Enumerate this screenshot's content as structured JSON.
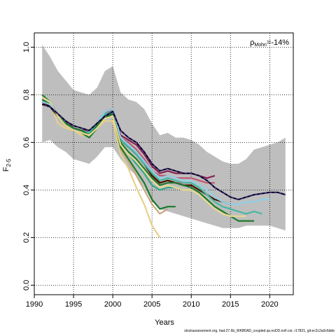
{
  "chart_data": {
    "type": "line",
    "title": "",
    "xlabel": "Years",
    "ylabel_main": "F",
    "ylabel_sub": "2-5",
    "xlim": [
      1990,
      2023
    ],
    "ylim": [
      -0.04,
      1.06
    ],
    "x_ticks": [
      1990,
      1995,
      2000,
      2005,
      2010,
      2015,
      2020
    ],
    "y_ticks": [
      0.0,
      0.2,
      0.4,
      0.6,
      0.8,
      1.0
    ],
    "y_tick_labels": [
      "0.0",
      "0.2",
      "0.4",
      "0.6",
      "0.8",
      "1.0"
    ],
    "grid": true,
    "annotation": {
      "text_main": "ρ",
      "text_sub": "Mohn",
      "text_value": "=-14%"
    },
    "confidence_band": {
      "color": "#bebebe",
      "x": [
        1991,
        1992,
        1993,
        1994,
        1995,
        1996,
        1997,
        1998,
        1999,
        2000,
        2001,
        2002,
        2003,
        2004,
        2005,
        2006,
        2007,
        2008,
        2009,
        2010,
        2011,
        2012,
        2013,
        2014,
        2015,
        2016,
        2017,
        2018,
        2019,
        2020,
        2021,
        2022
      ],
      "upper": [
        1.01,
        0.96,
        0.9,
        0.86,
        0.82,
        0.81,
        0.8,
        0.83,
        0.9,
        0.92,
        0.81,
        0.78,
        0.77,
        0.74,
        0.68,
        0.63,
        0.64,
        0.62,
        0.62,
        0.61,
        0.59,
        0.56,
        0.54,
        0.52,
        0.51,
        0.51,
        0.53,
        0.57,
        0.58,
        0.59,
        0.6,
        0.62
      ],
      "lower": [
        0.6,
        0.61,
        0.58,
        0.56,
        0.53,
        0.52,
        0.51,
        0.54,
        0.58,
        0.58,
        0.53,
        0.49,
        0.46,
        0.41,
        0.35,
        0.32,
        0.31,
        0.3,
        0.29,
        0.28,
        0.27,
        0.26,
        0.25,
        0.24,
        0.24,
        0.24,
        0.25,
        0.25,
        0.25,
        0.25,
        0.24,
        0.23
      ]
    },
    "series": [
      {
        "color": "#e8d08a",
        "x": [
          1991,
          1992,
          1993,
          1994,
          1995,
          1996,
          1997,
          1998,
          1999,
          2000,
          2001,
          2002,
          2003,
          2004,
          2005,
          2006
        ],
        "values": [
          0.79,
          0.77,
          0.68,
          0.66,
          0.65,
          0.63,
          0.63,
          0.66,
          0.69,
          0.69,
          0.55,
          0.49,
          0.41,
          0.34,
          0.25,
          0.2
        ]
      },
      {
        "color": "#c8a880",
        "x": [
          1991,
          1992,
          1993,
          1994,
          1995,
          1996,
          1997,
          1998,
          1999,
          2000,
          2001,
          2002,
          2003,
          2004,
          2005,
          2006,
          2007
        ],
        "values": [
          0.79,
          0.77,
          0.72,
          0.68,
          0.66,
          0.65,
          0.64,
          0.67,
          0.71,
          0.72,
          0.57,
          0.52,
          0.46,
          0.4,
          0.34,
          0.3,
          0.32
        ]
      },
      {
        "color": "#1b7a2c",
        "x": [
          1991,
          1992,
          1993,
          1994,
          1995,
          1996,
          1997,
          1998,
          1999,
          2000,
          2001,
          2002,
          2003,
          2004,
          2005,
          2006,
          2007,
          2008
        ],
        "values": [
          0.8,
          0.77,
          0.71,
          0.67,
          0.65,
          0.64,
          0.62,
          0.66,
          0.7,
          0.72,
          0.58,
          0.53,
          0.48,
          0.43,
          0.36,
          0.32,
          0.33,
          0.33
        ]
      },
      {
        "color": "#2fa88a",
        "x": [
          1991,
          1992,
          1993,
          1994,
          1995,
          1996,
          1997,
          1998,
          1999,
          2000,
          2001,
          2002,
          2003,
          2004,
          2005,
          2006,
          2007,
          2008,
          2009
        ],
        "values": [
          0.78,
          0.76,
          0.72,
          0.68,
          0.66,
          0.65,
          0.64,
          0.67,
          0.72,
          0.74,
          0.59,
          0.55,
          0.51,
          0.47,
          0.42,
          0.4,
          0.41,
          0.41,
          0.4
        ]
      },
      {
        "color": "#dd6088",
        "x": [
          1991,
          1992,
          1993,
          1994,
          1995,
          1996,
          1997,
          1998,
          1999,
          2000,
          2001,
          2002,
          2003,
          2004,
          2005,
          2006,
          2007,
          2008,
          2009,
          2010
        ],
        "values": [
          0.77,
          0.75,
          0.71,
          0.68,
          0.66,
          0.65,
          0.65,
          0.67,
          0.72,
          0.73,
          0.61,
          0.58,
          0.55,
          0.51,
          0.46,
          0.43,
          0.44,
          0.43,
          0.43,
          0.43
        ]
      },
      {
        "color": "#4a1f10",
        "x": [
          1991,
          1992,
          1993,
          1994,
          1995,
          1996,
          1997,
          1998,
          1999,
          2000,
          2001,
          2002,
          2003,
          2004,
          2005,
          2006,
          2007,
          2008,
          2009,
          2010,
          2011
        ],
        "values": [
          0.76,
          0.75,
          0.71,
          0.68,
          0.66,
          0.65,
          0.65,
          0.67,
          0.71,
          0.72,
          0.61,
          0.58,
          0.55,
          0.51,
          0.46,
          0.43,
          0.44,
          0.43,
          0.42,
          0.42,
          0.4
        ]
      },
      {
        "color": "#c05870",
        "x": [
          1991,
          1992,
          1993,
          1994,
          1995,
          1996,
          1997,
          1998,
          1999,
          2000,
          2001,
          2002,
          2003,
          2004,
          2005,
          2006,
          2007,
          2008,
          2009,
          2010,
          2011,
          2012,
          2013
        ],
        "values": [
          0.77,
          0.76,
          0.72,
          0.68,
          0.66,
          0.65,
          0.65,
          0.68,
          0.72,
          0.74,
          0.62,
          0.6,
          0.57,
          0.53,
          0.48,
          0.46,
          0.46,
          0.45,
          0.45,
          0.45,
          0.44,
          0.43,
          0.43
        ]
      },
      {
        "color": "#8a1f4f",
        "x": [
          1991,
          1992,
          1993,
          1994,
          1995,
          1996,
          1997,
          1998,
          1999,
          2000,
          2001,
          2002,
          2003,
          2004,
          2005,
          2006,
          2007,
          2008,
          2009,
          2010,
          2011,
          2012,
          2013
        ],
        "values": [
          0.77,
          0.76,
          0.72,
          0.69,
          0.66,
          0.65,
          0.65,
          0.68,
          0.73,
          0.74,
          0.63,
          0.61,
          0.59,
          0.55,
          0.5,
          0.47,
          0.48,
          0.47,
          0.47,
          0.47,
          0.46,
          0.45,
          0.46
        ]
      },
      {
        "color": "#4a1500",
        "x": [
          1991,
          1992,
          1993,
          1994,
          1995,
          1996,
          1997,
          1998,
          1999,
          2000,
          2001,
          2002,
          2003,
          2004,
          2005,
          2006,
          2007,
          2008,
          2009,
          2010,
          2011,
          2012,
          2013,
          2014,
          2015
        ],
        "values": [
          0.77,
          0.75,
          0.71,
          0.68,
          0.66,
          0.65,
          0.64,
          0.67,
          0.71,
          0.72,
          0.61,
          0.58,
          0.55,
          0.51,
          0.46,
          0.43,
          0.44,
          0.43,
          0.42,
          0.42,
          0.4,
          0.38,
          0.36,
          0.35,
          0.34
        ]
      },
      {
        "color": "#44b8a0",
        "x": [
          1991,
          1992,
          1993,
          1994,
          1995,
          1996,
          1997,
          1998,
          1999,
          2000,
          2001,
          2002,
          2003,
          2004,
          2005,
          2006,
          2007,
          2008,
          2009,
          2010,
          2011,
          2012,
          2013,
          2014,
          2015,
          2016,
          2017,
          2018,
          2019
        ],
        "values": [
          0.78,
          0.76,
          0.72,
          0.68,
          0.66,
          0.65,
          0.64,
          0.68,
          0.72,
          0.73,
          0.61,
          0.58,
          0.55,
          0.51,
          0.47,
          0.44,
          0.45,
          0.44,
          0.43,
          0.43,
          0.41,
          0.38,
          0.35,
          0.33,
          0.32,
          0.31,
          0.3,
          0.31,
          0.3
        ]
      },
      {
        "color": "#1f7a2f",
        "x": [
          1991,
          1992,
          1993,
          1994,
          1995,
          1996,
          1997,
          1998,
          1999,
          2000,
          2001,
          2002,
          2003,
          2004,
          2005,
          2006,
          2007,
          2008,
          2009,
          2010,
          2011,
          2012,
          2013,
          2014,
          2015,
          2016,
          2017,
          2018
        ],
        "values": [
          0.78,
          0.76,
          0.71,
          0.68,
          0.66,
          0.65,
          0.63,
          0.67,
          0.71,
          0.72,
          0.6,
          0.56,
          0.53,
          0.49,
          0.45,
          0.42,
          0.43,
          0.43,
          0.42,
          0.41,
          0.39,
          0.36,
          0.33,
          0.31,
          0.29,
          0.27,
          0.27,
          0.27
        ]
      },
      {
        "color": "#e8d890",
        "x": [
          1991,
          1992,
          1993,
          1994,
          1995,
          1996,
          1997,
          1998,
          1999,
          2000,
          2001,
          2002,
          2003,
          2004,
          2005,
          2006,
          2007,
          2008,
          2009,
          2010,
          2011,
          2012,
          2013,
          2014,
          2015,
          2016,
          2017
        ],
        "values": [
          0.79,
          0.77,
          0.71,
          0.67,
          0.65,
          0.64,
          0.63,
          0.66,
          0.7,
          0.71,
          0.59,
          0.55,
          0.52,
          0.48,
          0.44,
          0.41,
          0.42,
          0.41,
          0.4,
          0.4,
          0.38,
          0.35,
          0.32,
          0.3,
          0.29,
          0.29,
          0.29
        ]
      },
      {
        "color": "#8fd0e8",
        "x": [
          1991,
          1992,
          1993,
          1994,
          1995,
          1996,
          1997,
          1998,
          1999,
          2000,
          2001,
          2002,
          2003,
          2004,
          2005,
          2006,
          2007,
          2008,
          2009,
          2010,
          2011,
          2012,
          2013,
          2014,
          2015,
          2016,
          2017,
          2018,
          2019,
          2020
        ],
        "values": [
          0.77,
          0.76,
          0.72,
          0.69,
          0.67,
          0.66,
          0.65,
          0.68,
          0.73,
          0.74,
          0.62,
          0.59,
          0.56,
          0.52,
          0.48,
          0.45,
          0.46,
          0.45,
          0.44,
          0.44,
          0.42,
          0.4,
          0.37,
          0.35,
          0.34,
          0.34,
          0.35,
          0.35,
          0.36,
          0.36
        ]
      },
      {
        "color": "#3a2a7a",
        "x": [
          1991,
          1992,
          1993,
          1994,
          1995,
          1996,
          1997,
          1998,
          1999,
          2000,
          2001,
          2002,
          2003,
          2004,
          2005,
          2006,
          2007,
          2008,
          2009,
          2010,
          2011,
          2012,
          2013,
          2014,
          2015,
          2016,
          2017,
          2018,
          2019,
          2020,
          2021,
          2022
        ],
        "values": [
          0.76,
          0.75,
          0.72,
          0.69,
          0.67,
          0.66,
          0.65,
          0.68,
          0.71,
          0.73,
          0.65,
          0.62,
          0.6,
          0.56,
          0.51,
          0.48,
          0.49,
          0.48,
          0.47,
          0.47,
          0.46,
          0.44,
          0.41,
          0.39,
          0.37,
          0.36,
          0.37,
          0.38,
          0.385,
          0.39,
          0.39,
          0.38
        ]
      },
      {
        "color": "#000000",
        "dashed": true,
        "x": [
          1991,
          1992,
          1993,
          1994,
          1995,
          1996,
          1997,
          1998,
          1999,
          2000,
          2001,
          2002,
          2003,
          2004,
          2005,
          2006,
          2007,
          2008,
          2009,
          2010,
          2011,
          2012,
          2013,
          2014,
          2015,
          2016,
          2017,
          2018,
          2019,
          2020,
          2021,
          2022
        ],
        "values": [
          0.76,
          0.75,
          0.72,
          0.69,
          0.67,
          0.66,
          0.65,
          0.68,
          0.71,
          0.73,
          0.65,
          0.62,
          0.6,
          0.56,
          0.51,
          0.48,
          0.49,
          0.48,
          0.47,
          0.47,
          0.46,
          0.44,
          0.41,
          0.39,
          0.37,
          0.36,
          0.37,
          0.38,
          0.385,
          0.39,
          0.39,
          0.38
        ]
      }
    ]
  },
  "footer": "stockassessment.org, had.27.6b_WKB0AD_coupled.qs.noDD.noF.cor, r17821, git:ec2c2a0c6dde"
}
